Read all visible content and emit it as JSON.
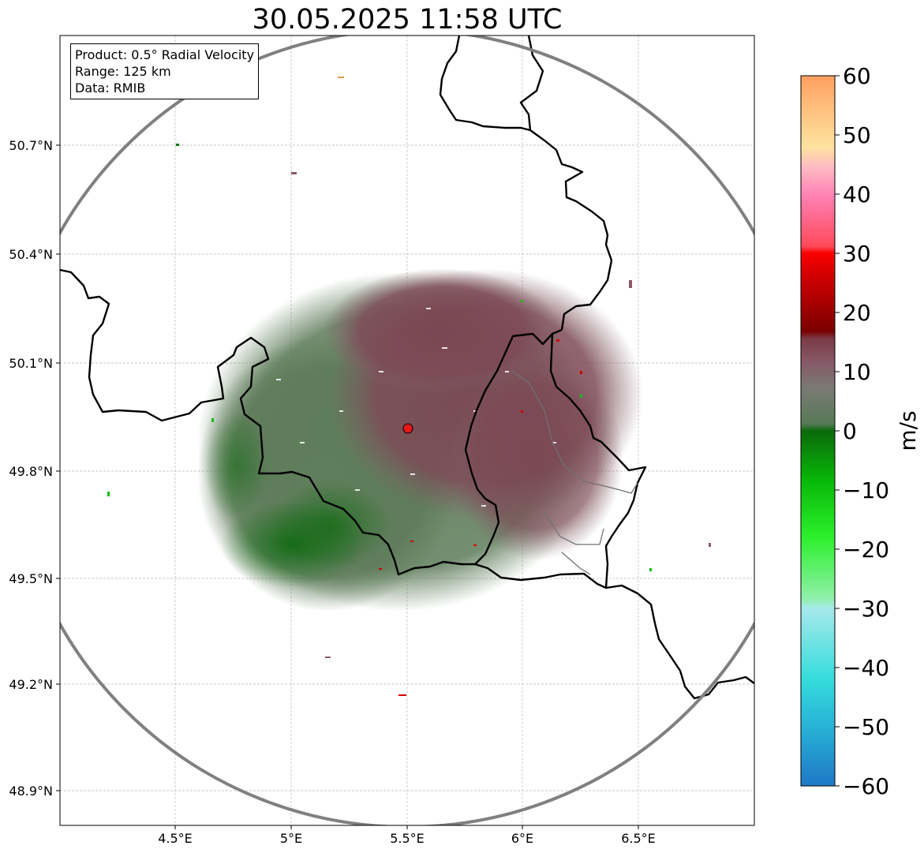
{
  "title": "30.05.2025 11:58 UTC",
  "info_box": {
    "line1": "Product: 0.5° Radial Velocity",
    "line2": "Range: 125 km",
    "line3": "Data: RMIB"
  },
  "axes": {
    "lon_ticks": [
      "4.5°E",
      "5°E",
      "5.5°E",
      "6°E",
      "6.5°E"
    ],
    "lat_ticks": [
      "50.7°N",
      "50.4°N",
      "50.1°N",
      "49.8°N",
      "49.5°N",
      "49.2°N",
      "48.9°N"
    ],
    "lon_range": [
      4.0,
      7.0
    ],
    "lat_range": [
      48.8,
      50.98
    ],
    "grid": true
  },
  "radar_site": {
    "lon": 5.505,
    "lat": 49.915,
    "range_km": 125
  },
  "colorbar": {
    "label": "m/s",
    "min": -60,
    "max": 60,
    "ticks": [
      "60",
      "50",
      "40",
      "30",
      "20",
      "10",
      "0",
      "−10",
      "−20",
      "−30",
      "−40",
      "−50",
      "−60"
    ]
  },
  "colors": {
    "incoming": "#5f7a5e",
    "outgoing": "#7e4b55",
    "range_ring": "#808080",
    "site_marker": "#e81818"
  }
}
